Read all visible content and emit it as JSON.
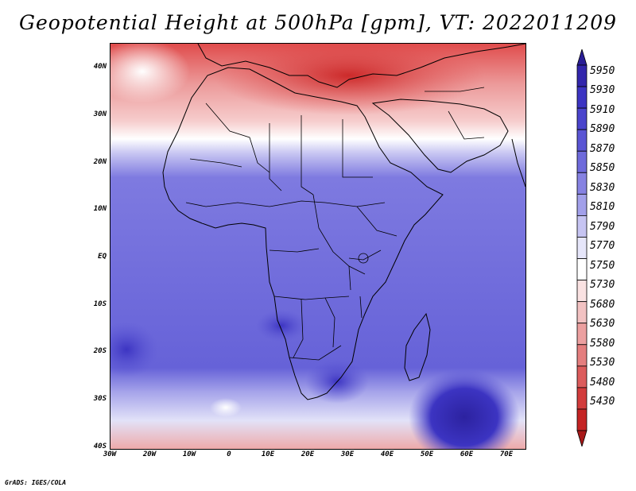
{
  "title": "Geopotential Height at 500hPa [gpm], VT: 2022011209",
  "credit": "GrADS: IGES/COLA",
  "map": {
    "latitude_labels": [
      "40N",
      "30N",
      "20N",
      "10N",
      "EQ",
      "10S",
      "20S",
      "30S",
      "40S"
    ],
    "longitude_labels": [
      "30W",
      "20W",
      "10W",
      "0",
      "10E",
      "20E",
      "30E",
      "40E",
      "50E",
      "60E",
      "70E"
    ],
    "extent": {
      "lon_min": -30,
      "lon_max": 75,
      "lat_min": -40,
      "lat_max": 45
    }
  },
  "colorbar": {
    "labels": [
      "5950",
      "5930",
      "5910",
      "5890",
      "5870",
      "5850",
      "5830",
      "5810",
      "5790",
      "5770",
      "5750",
      "5730",
      "5680",
      "5630",
      "5580",
      "5530",
      "5480",
      "5430"
    ],
    "colors": [
      "#2a1e96",
      "#3226ac",
      "#3c34c2",
      "#4a44cc",
      "#5a55d4",
      "#6e6adb",
      "#8682e2",
      "#a2a0ea",
      "#c6c4f2",
      "#e6e6fa",
      "#ffffff",
      "#fae2e2",
      "#f2c2c2",
      "#eca0a0",
      "#e47e7e",
      "#dc5c5c",
      "#d23c3c",
      "#c42424",
      "#a81818"
    ]
  }
}
